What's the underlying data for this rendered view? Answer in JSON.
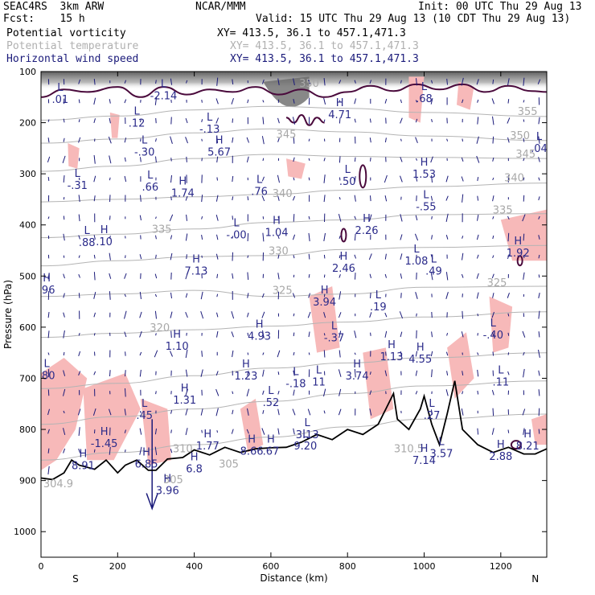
{
  "header": {
    "experiment": "SEAC4RS  3km ARW",
    "forecast": "Fcst:    15 h",
    "org": "NCAR/MMM",
    "init": "Init: 00 UTC Thu 29 Aug 13",
    "valid": "Valid: 15 UTC Thu 29 Aug 13 (10 CDT Thu 29 Aug 13)"
  },
  "legend": [
    {
      "label": "Potential vorticity",
      "xy": "XY= 413.5, 36.1 to 457.1,471.3",
      "color": "#000000"
    },
    {
      "label": "Potential temperature",
      "xy": "XY= 413.5, 36.1 to 457.1,471.3",
      "color": "#b0b0b0"
    },
    {
      "label": "Horizontal wind speed",
      "xy": "XY= 413.5, 36.1 to 457.1,471.3",
      "color": "#1a1a7a"
    }
  ],
  "colors": {
    "pv_fill": "#f7b9b9",
    "pv_high": "#555555",
    "pv_contour": "#4a0a3c",
    "theta": "#b4b4b4",
    "wind": "#1a1a7a",
    "terrain": "#000000"
  },
  "chart_data": {
    "type": "cross-section",
    "xlabel": "Distance (km)",
    "ylabel": "Pressure (hPa)",
    "xlim": [
      0,
      1320
    ],
    "ylim": [
      1050,
      100
    ],
    "x_ticks": [
      0,
      200,
      400,
      600,
      800,
      1000,
      1200
    ],
    "y_ticks": [
      100,
      200,
      300,
      400,
      500,
      600,
      700,
      800,
      900,
      1000
    ],
    "left_end_label": "S",
    "right_end_label": "N",
    "terrain": [
      [
        0,
        895
      ],
      [
        30,
        898
      ],
      [
        60,
        885
      ],
      [
        80,
        860
      ],
      [
        100,
        870
      ],
      [
        140,
        878
      ],
      [
        170,
        860
      ],
      [
        200,
        885
      ],
      [
        220,
        870
      ],
      [
        250,
        860
      ],
      [
        280,
        880
      ],
      [
        300,
        880
      ],
      [
        330,
        858
      ],
      [
        370,
        855
      ],
      [
        400,
        840
      ],
      [
        440,
        850
      ],
      [
        480,
        835
      ],
      [
        520,
        845
      ],
      [
        560,
        838
      ],
      [
        600,
        836
      ],
      [
        640,
        835
      ],
      [
        680,
        825
      ],
      [
        720,
        810
      ],
      [
        760,
        820
      ],
      [
        800,
        800
      ],
      [
        840,
        810
      ],
      [
        880,
        790
      ],
      [
        900,
        760
      ],
      [
        920,
        730
      ],
      [
        930,
        780
      ],
      [
        960,
        800
      ],
      [
        990,
        760
      ],
      [
        1000,
        735
      ],
      [
        1020,
        790
      ],
      [
        1040,
        830
      ],
      [
        1060,
        770
      ],
      [
        1080,
        705
      ],
      [
        1100,
        800
      ],
      [
        1140,
        830
      ],
      [
        1180,
        845
      ],
      [
        1220,
        835
      ],
      [
        1260,
        848
      ],
      [
        1290,
        848
      ],
      [
        1320,
        838
      ]
    ],
    "theta_contours": [
      {
        "level": 305,
        "points": [
          [
            0,
            860
          ],
          [
            200,
            845
          ],
          [
            400,
            830
          ],
          [
            600,
            815
          ],
          [
            800,
            795
          ],
          [
            1000,
            780
          ],
          [
            1320,
            770
          ]
        ]
      },
      {
        "level": 310,
        "points": [
          [
            0,
            790
          ],
          [
            200,
            775
          ],
          [
            400,
            760
          ],
          [
            600,
            745
          ],
          [
            800,
            730
          ],
          [
            1000,
            715
          ],
          [
            1320,
            705
          ]
        ]
      },
      {
        "level": 315,
        "points": [
          [
            0,
            720
          ],
          [
            200,
            710
          ],
          [
            400,
            695
          ],
          [
            600,
            680
          ],
          [
            800,
            670
          ],
          [
            1000,
            660
          ],
          [
            1320,
            650
          ]
        ]
      },
      {
        "level": 320,
        "points": [
          [
            0,
            620
          ],
          [
            200,
            612
          ],
          [
            400,
            605
          ],
          [
            600,
            598
          ],
          [
            800,
            590
          ],
          [
            1000,
            580
          ],
          [
            1320,
            570
          ]
        ]
      },
      {
        "level": 325,
        "points": [
          [
            0,
            540
          ],
          [
            200,
            535
          ],
          [
            400,
            528
          ],
          [
            600,
            540
          ],
          [
            800,
            535
          ],
          [
            1000,
            522
          ],
          [
            1320,
            520
          ]
        ]
      },
      {
        "level": 330,
        "points": [
          [
            0,
            480
          ],
          [
            200,
            470
          ],
          [
            400,
            462
          ],
          [
            600,
            460
          ],
          [
            800,
            448
          ],
          [
            1000,
            444
          ],
          [
            1320,
            440
          ]
        ]
      },
      {
        "level": 335,
        "points": [
          [
            0,
            425
          ],
          [
            200,
            418
          ],
          [
            400,
            408
          ],
          [
            600,
            395
          ],
          [
            800,
            390
          ],
          [
            1000,
            380
          ],
          [
            1320,
            378
          ]
        ]
      },
      {
        "level": 340,
        "points": [
          [
            0,
            355
          ],
          [
            200,
            350
          ],
          [
            400,
            345
          ],
          [
            600,
            340
          ],
          [
            800,
            332
          ],
          [
            1000,
            325
          ],
          [
            1320,
            318
          ]
        ]
      },
      {
        "level": 345,
        "points": [
          [
            0,
            295
          ],
          [
            200,
            285
          ],
          [
            400,
            270
          ],
          [
            600,
            262
          ],
          [
            800,
            266
          ],
          [
            1000,
            268
          ],
          [
            1320,
            270
          ]
        ]
      },
      {
        "level": 350,
        "points": [
          [
            0,
            240
          ],
          [
            200,
            232
          ],
          [
            400,
            220
          ],
          [
            600,
            212
          ],
          [
            800,
            218
          ],
          [
            1000,
            226
          ],
          [
            1320,
            235
          ]
        ]
      },
      {
        "level": 355,
        "points": [
          [
            0,
            195
          ],
          [
            200,
            187
          ],
          [
            400,
            175
          ],
          [
            600,
            168
          ],
          [
            800,
            172
          ],
          [
            1000,
            180
          ],
          [
            1320,
            188
          ]
        ]
      }
    ],
    "theta_labels": [
      {
        "text": "350",
        "x": 700,
        "p": 130
      },
      {
        "text": "345",
        "x": 640,
        "p": 230
      },
      {
        "text": "355",
        "x": 1270,
        "p": 185
      },
      {
        "text": "350",
        "x": 1250,
        "p": 232
      },
      {
        "text": "345",
        "x": 1265,
        "p": 268
      },
      {
        "text": "340",
        "x": 1235,
        "p": 315
      },
      {
        "text": "340",
        "x": 630,
        "p": 345
      },
      {
        "text": "335",
        "x": 1205,
        "p": 378
      },
      {
        "text": "335",
        "x": 315,
        "p": 415
      },
      {
        "text": "330",
        "x": 620,
        "p": 458
      },
      {
        "text": "325",
        "x": 1190,
        "p": 520
      },
      {
        "text": "325",
        "x": 630,
        "p": 535
      },
      {
        "text": "320",
        "x": 310,
        "p": 608
      },
      {
        "text": "310",
        "x": 370,
        "p": 845
      },
      {
        "text": "305",
        "x": 490,
        "p": 875
      },
      {
        "text": "310.5",
        "x": 960,
        "p": 845
      },
      {
        "text": "305",
        "x": 345,
        "p": 905
      },
      {
        "text": "304.9",
        "x": 45,
        "p": 913
      }
    ],
    "pv_extrema": [
      {
        "kind": "L",
        "value": ".01",
        "x": 50,
        "p": 152
      },
      {
        "kind": "L",
        "value": "-2.14",
        "x": 320,
        "p": 145
      },
      {
        "kind": "H",
        "value": "4.71",
        "x": 780,
        "p": 182
      },
      {
        "kind": "L",
        "value": ".68",
        "x": 1000,
        "p": 150
      },
      {
        "kind": "L",
        "value": ".12",
        "x": 250,
        "p": 198
      },
      {
        "kind": "L",
        "value": "-.13",
        "x": 440,
        "p": 210
      },
      {
        "kind": "L",
        "value": "-.30",
        "x": 270,
        "p": 255
      },
      {
        "kind": "H",
        "value": "5.67",
        "x": 465,
        "p": 255
      },
      {
        "kind": "L",
        "value": ".04",
        "x": 1300,
        "p": 248
      },
      {
        "kind": "H",
        "value": "1.53",
        "x": 1000,
        "p": 298
      },
      {
        "kind": "L",
        "value": "-.31",
        "x": 95,
        "p": 320
      },
      {
        "kind": "L",
        "value": ".66",
        "x": 285,
        "p": 323
      },
      {
        "kind": "H",
        "value": "1.74",
        "x": 370,
        "p": 335
      },
      {
        "kind": "L",
        "value": ".76",
        "x": 570,
        "p": 332
      },
      {
        "kind": "L",
        "value": ".50",
        "x": 800,
        "p": 312
      },
      {
        "kind": "L",
        "value": "-.55",
        "x": 1005,
        "p": 362
      },
      {
        "kind": "H",
        "value": ".10",
        "x": 165,
        "p": 430
      },
      {
        "kind": "L",
        "value": ".88",
        "x": 120,
        "p": 432
      },
      {
        "kind": "L",
        "value": "-.00",
        "x": 510,
        "p": 417
      },
      {
        "kind": "H",
        "value": "1.04",
        "x": 615,
        "p": 412
      },
      {
        "kind": "H",
        "value": "2.26",
        "x": 850,
        "p": 408
      },
      {
        "kind": "H",
        "value": "1.92",
        "x": 1245,
        "p": 452
      },
      {
        "kind": "H",
        "value": "7.13",
        "x": 405,
        "p": 488
      },
      {
        "kind": "H",
        "value": "2.46",
        "x": 790,
        "p": 482
      },
      {
        "kind": "L",
        "value": "1.08",
        "x": 980,
        "p": 468
      },
      {
        "kind": "L",
        "value": ".49",
        "x": 1025,
        "p": 488
      },
      {
        "kind": "H",
        "value": ".96",
        "x": 15,
        "p": 525
      },
      {
        "kind": "H",
        "value": "3.94",
        "x": 740,
        "p": 548
      },
      {
        "kind": "L",
        "value": ".19",
        "x": 880,
        "p": 558
      },
      {
        "kind": "H",
        "value": "4.93",
        "x": 570,
        "p": 615
      },
      {
        "kind": "L",
        "value": "-.37",
        "x": 765,
        "p": 618
      },
      {
        "kind": "L",
        "value": "-.40",
        "x": 1180,
        "p": 613
      },
      {
        "kind": "H",
        "value": "1.10",
        "x": 355,
        "p": 635
      },
      {
        "kind": "H",
        "value": "1.13",
        "x": 915,
        "p": 655
      },
      {
        "kind": "H",
        "value": "4.55",
        "x": 990,
        "p": 660
      },
      {
        "kind": "L",
        "value": ".80",
        "x": 15,
        "p": 692
      },
      {
        "kind": "H",
        "value": "1.23",
        "x": 535,
        "p": 693
      },
      {
        "kind": "L",
        "value": "-.18",
        "x": 665,
        "p": 708
      },
      {
        "kind": "L",
        "value": "11",
        "x": 725,
        "p": 705
      },
      {
        "kind": "H",
        "value": "3.74",
        "x": 825,
        "p": 693
      },
      {
        "kind": "L",
        "value": ".11",
        "x": 1200,
        "p": 705
      },
      {
        "kind": "H",
        "value": "1.31",
        "x": 375,
        "p": 740
      },
      {
        "kind": "L",
        "value": ".52",
        "x": 600,
        "p": 745
      },
      {
        "kind": "L",
        "value": ".45",
        "x": 270,
        "p": 770
      },
      {
        "kind": "L",
        "value": ".27",
        "x": 1020,
        "p": 770
      },
      {
        "kind": "H",
        "value": "-1.45",
        "x": 165,
        "p": 825
      },
      {
        "kind": "L",
        "value": "3.13",
        "x": 695,
        "p": 808
      },
      {
        "kind": "H",
        "value": "1.77",
        "x": 435,
        "p": 830
      },
      {
        "kind": "H",
        "value": "8.66",
        "x": 550,
        "p": 840
      },
      {
        "kind": "H",
        "value": ".67",
        "x": 600,
        "p": 840
      },
      {
        "kind": "L",
        "value": "9.20",
        "x": 690,
        "p": 830
      },
      {
        "kind": "H",
        "value": "8.21",
        "x": 1270,
        "p": 830
      },
      {
        "kind": "H",
        "value": "7.14",
        "x": 1000,
        "p": 858
      },
      {
        "kind": "L",
        "value": "3.57",
        "x": 1045,
        "p": 845
      },
      {
        "kind": "H",
        "value": "2.88",
        "x": 1200,
        "p": 850
      },
      {
        "kind": "H",
        "value": "8.91",
        "x": 110,
        "p": 868
      },
      {
        "kind": "H",
        "value": "6.85",
        "x": 275,
        "p": 865
      },
      {
        "kind": "H",
        "value": "6.8",
        "x": 400,
        "p": 875
      },
      {
        "kind": "H",
        "value": "3.96",
        "x": 330,
        "p": 917
      }
    ]
  }
}
